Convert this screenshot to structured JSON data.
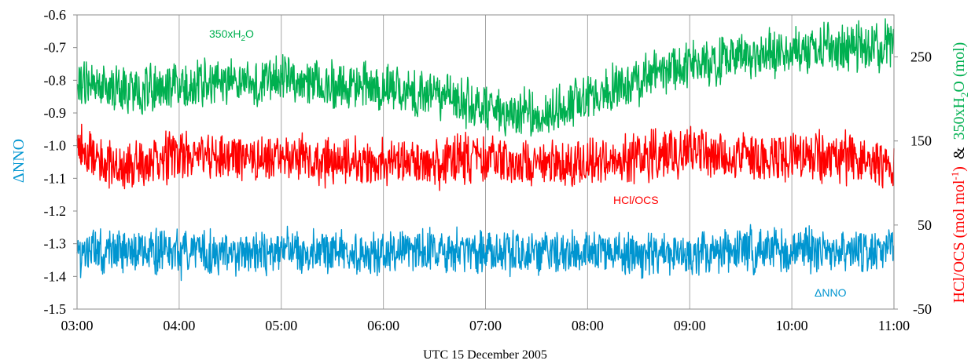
{
  "chart_data": {
    "type": "line",
    "xlabel": "UTC 15 December 2005",
    "x_ticks": [
      "03:00",
      "04:00",
      "05:00",
      "06:00",
      "07:00",
      "08:00",
      "09:00",
      "10:00",
      "11:00"
    ],
    "xlim": [
      "03:00",
      "11:00"
    ],
    "y_left": {
      "label": "ΔNNO",
      "lim": [
        -1.5,
        -0.6
      ],
      "ticks": [
        "-0.6",
        "-0.7",
        "-0.8",
        "-0.9",
        "-1.0",
        "-1.1",
        "-1.2",
        "-1.3",
        "-1.4",
        "-1.5"
      ]
    },
    "y_right": {
      "label_part1": "HCl/OCS (mol mol",
      "label_sup": "-1",
      "label_part2": ")",
      "label_amp": "&",
      "label_part3": "350xH",
      "label_sub": "2",
      "label_part4": "O (mol)",
      "lim": [
        -50,
        300
      ],
      "ticks": [
        "250",
        "150",
        "50",
        "-50"
      ]
    },
    "grid": "vertical",
    "series": [
      {
        "name": "350xH2O",
        "label_main": "350xH",
        "label_sub": "2",
        "label_tail": "O",
        "axis": "right",
        "color": "#00b050",
        "x": [
          "03:00",
          "03:30",
          "04:00",
          "04:30",
          "05:00",
          "05:30",
          "06:00",
          "06:30",
          "07:00",
          "07:30",
          "08:00",
          "08:30",
          "09:00",
          "09:30",
          "10:00",
          "10:30",
          "11:00"
        ],
        "values": [
          220,
          210,
          215,
          218,
          222,
          215,
          212,
          205,
          190,
          180,
          200,
          225,
          240,
          250,
          255,
          262,
          262
        ]
      },
      {
        "name": "HCl/OCS",
        "label": "HCl/OCS",
        "axis": "right",
        "color": "#ff0000",
        "x": [
          "03:00",
          "03:30",
          "04:00",
          "04:30",
          "05:00",
          "05:30",
          "06:00",
          "06:30",
          "07:00",
          "07:30",
          "08:00",
          "08:30",
          "09:00",
          "09:30",
          "10:00",
          "10:30",
          "11:00"
        ],
        "values": [
          140,
          115,
          135,
          130,
          130,
          125,
          125,
          125,
          130,
          120,
          125,
          130,
          140,
          130,
          130,
          130,
          120
        ]
      },
      {
        "name": "ΔNNO",
        "label": "ΔNNO",
        "axis": "left",
        "color": "#0095d0",
        "x": [
          "03:00",
          "03:30",
          "04:00",
          "04:30",
          "05:00",
          "05:30",
          "06:00",
          "06:30",
          "07:00",
          "07:30",
          "08:00",
          "08:30",
          "09:00",
          "09:30",
          "10:00",
          "10:30",
          "11:00"
        ],
        "values": [
          -1.33,
          -1.32,
          -1.33,
          -1.33,
          -1.32,
          -1.33,
          -1.33,
          -1.32,
          -1.33,
          -1.32,
          -1.33,
          -1.33,
          -1.33,
          -1.32,
          -1.32,
          -1.32,
          -1.33
        ]
      }
    ]
  }
}
